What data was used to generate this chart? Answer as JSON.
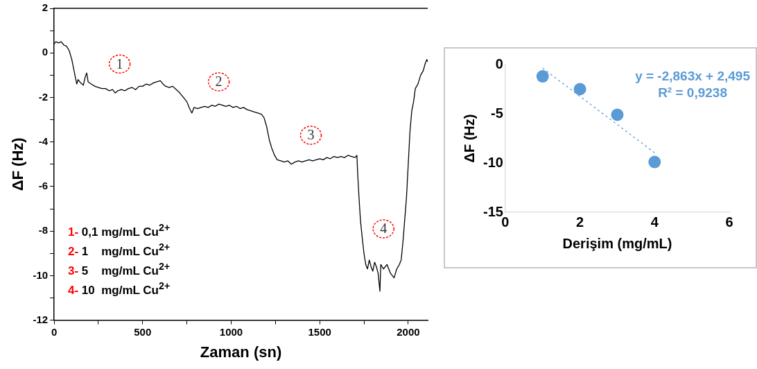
{
  "chart_data": [
    {
      "type": "line",
      "xlabel": "Zaman (sn)",
      "ylabel": "ΔF (Hz)",
      "xlim": [
        0,
        2110
      ],
      "ylim": [
        -12,
        2
      ],
      "xticks": [
        0,
        {
          "value": 250,
          "label": null
        },
        500,
        {
          "value": 750,
          "label": null
        },
        1000,
        {
          "value": 1250,
          "label": null
        },
        1500,
        {
          "value": 1750,
          "label": null
        },
        2000
      ],
      "yticks": [
        -12,
        {
          "value": -11,
          "label": null
        },
        -10,
        {
          "value": -9,
          "label": null
        },
        -8,
        {
          "value": -7,
          "label": null
        },
        -6,
        {
          "value": -5,
          "label": null
        },
        -4,
        {
          "value": -3,
          "label": null
        },
        -2,
        {
          "value": -1,
          "label": null
        },
        0,
        {
          "value": 1,
          "label": null
        },
        2
      ],
      "grid": false,
      "legend": false,
      "x": [
        0,
        10,
        25,
        40,
        55,
        70,
        85,
        100,
        110,
        120,
        128,
        135,
        150,
        165,
        175,
        184,
        192,
        210,
        230,
        250,
        270,
        290,
        310,
        330,
        345,
        360,
        380,
        400,
        420,
        440,
        460,
        480,
        500,
        520,
        540,
        560,
        580,
        600,
        615,
        630,
        650,
        670,
        690,
        710,
        730,
        750,
        765,
        778,
        790,
        810,
        830,
        850,
        870,
        890,
        910,
        930,
        950,
        970,
        990,
        1010,
        1030,
        1050,
        1070,
        1090,
        1110,
        1130,
        1150,
        1170,
        1185,
        1200,
        1215,
        1230,
        1245,
        1260,
        1280,
        1300,
        1320,
        1340,
        1360,
        1380,
        1400,
        1420,
        1440,
        1460,
        1480,
        1500,
        1520,
        1540,
        1560,
        1580,
        1600,
        1620,
        1640,
        1660,
        1680,
        1700,
        1710,
        1715,
        1722,
        1730,
        1740,
        1750,
        1760,
        1770,
        1780,
        1790,
        1800,
        1810,
        1820,
        1830,
        1840,
        1845,
        1860,
        1880,
        1900,
        1920,
        1935,
        1950,
        1960,
        1970,
        1980,
        1990,
        2000,
        2010,
        2020,
        2030,
        2040,
        2055,
        2070,
        2085,
        2095,
        2105,
        2110
      ],
      "series": [
        {
          "color": "#000000",
          "values": [
            0.4,
            0.5,
            0.45,
            0.5,
            0.35,
            0.3,
            0.1,
            -0.3,
            -0.7,
            -1.1,
            -1.4,
            -1.2,
            -1.35,
            -1.45,
            -1.1,
            -0.9,
            -1.3,
            -1.4,
            -1.5,
            -1.55,
            -1.6,
            -1.6,
            -1.7,
            -1.65,
            -1.8,
            -1.7,
            -1.65,
            -1.7,
            -1.6,
            -1.55,
            -1.65,
            -1.5,
            -1.5,
            -1.4,
            -1.45,
            -1.35,
            -1.3,
            -1.25,
            -1.4,
            -1.5,
            -1.55,
            -1.5,
            -1.65,
            -1.8,
            -2.0,
            -2.2,
            -2.5,
            -2.7,
            -2.45,
            -2.5,
            -2.45,
            -2.4,
            -2.45,
            -2.35,
            -2.4,
            -2.3,
            -2.35,
            -2.4,
            -2.35,
            -2.45,
            -2.4,
            -2.5,
            -2.45,
            -2.55,
            -2.6,
            -2.65,
            -2.7,
            -2.75,
            -2.9,
            -3.3,
            -3.9,
            -4.3,
            -4.6,
            -4.8,
            -4.85,
            -4.9,
            -4.85,
            -5.0,
            -4.9,
            -4.85,
            -4.9,
            -4.85,
            -4.8,
            -4.85,
            -4.8,
            -4.75,
            -4.8,
            -4.7,
            -4.75,
            -4.65,
            -4.7,
            -4.65,
            -4.7,
            -4.6,
            -4.65,
            -4.7,
            -4.6,
            -5.5,
            -6.5,
            -7.5,
            -8.3,
            -9.0,
            -9.5,
            -9.7,
            -9.3,
            -9.6,
            -9.8,
            -9.4,
            -9.6,
            -9.9,
            -10.7,
            -9.5,
            -9.7,
            -9.5,
            -9.9,
            -10.1,
            -9.7,
            -9.5,
            -9.3,
            -8.5,
            -7.5,
            -6.5,
            -5.0,
            -3.5,
            -2.6,
            -2.2,
            -1.6,
            -1.4,
            -1.0,
            -0.8,
            -0.5,
            -0.3,
            -0.4
          ]
        }
      ],
      "annotations": [
        {
          "text": "1",
          "x": 370,
          "y": -0.5
        },
        {
          "text": "2",
          "x": 930,
          "y": -1.3
        },
        {
          "text": "3",
          "x": 1450,
          "y": -3.7
        },
        {
          "text": "4",
          "x": 1860,
          "y": -7.9
        },
        "1- 0,1 mg/mL Cu$^{2+}$",
        "2- 1    mg/mL Cu$^{2+}$",
        "3- 5    mg/mL Cu$^{2+}$",
        "4- 10  mg/mL Cu$^{2+}$"
      ]
    },
    {
      "type": "scatter",
      "xlabel": "Derişim (mg/mL)",
      "ylabel": "ΔF (Hz)",
      "xlim": [
        0,
        6
      ],
      "ylim": [
        -15,
        0
      ],
      "xticks": [
        0,
        2,
        4,
        6
      ],
      "yticks": [
        -15,
        -10,
        -5,
        0
      ],
      "grid": false,
      "legend": false,
      "series": [
        {
          "color": "#5b9bd5",
          "marker": "circle",
          "x": [
            1,
            2,
            3,
            4
          ],
          "values": [
            -1.2,
            -2.5,
            -5.1,
            -9.9
          ]
        },
        {
          "type": "line",
          "color": "#5b9bd5",
          "x": [
            1,
            4
          ],
          "values": [
            -0.37,
            -8.96
          ],
          "line_style": "dotted"
        }
      ],
      "annotations": [
        "y = -2,863x + 2,495",
        "R² = 0,9238"
      ]
    }
  ]
}
